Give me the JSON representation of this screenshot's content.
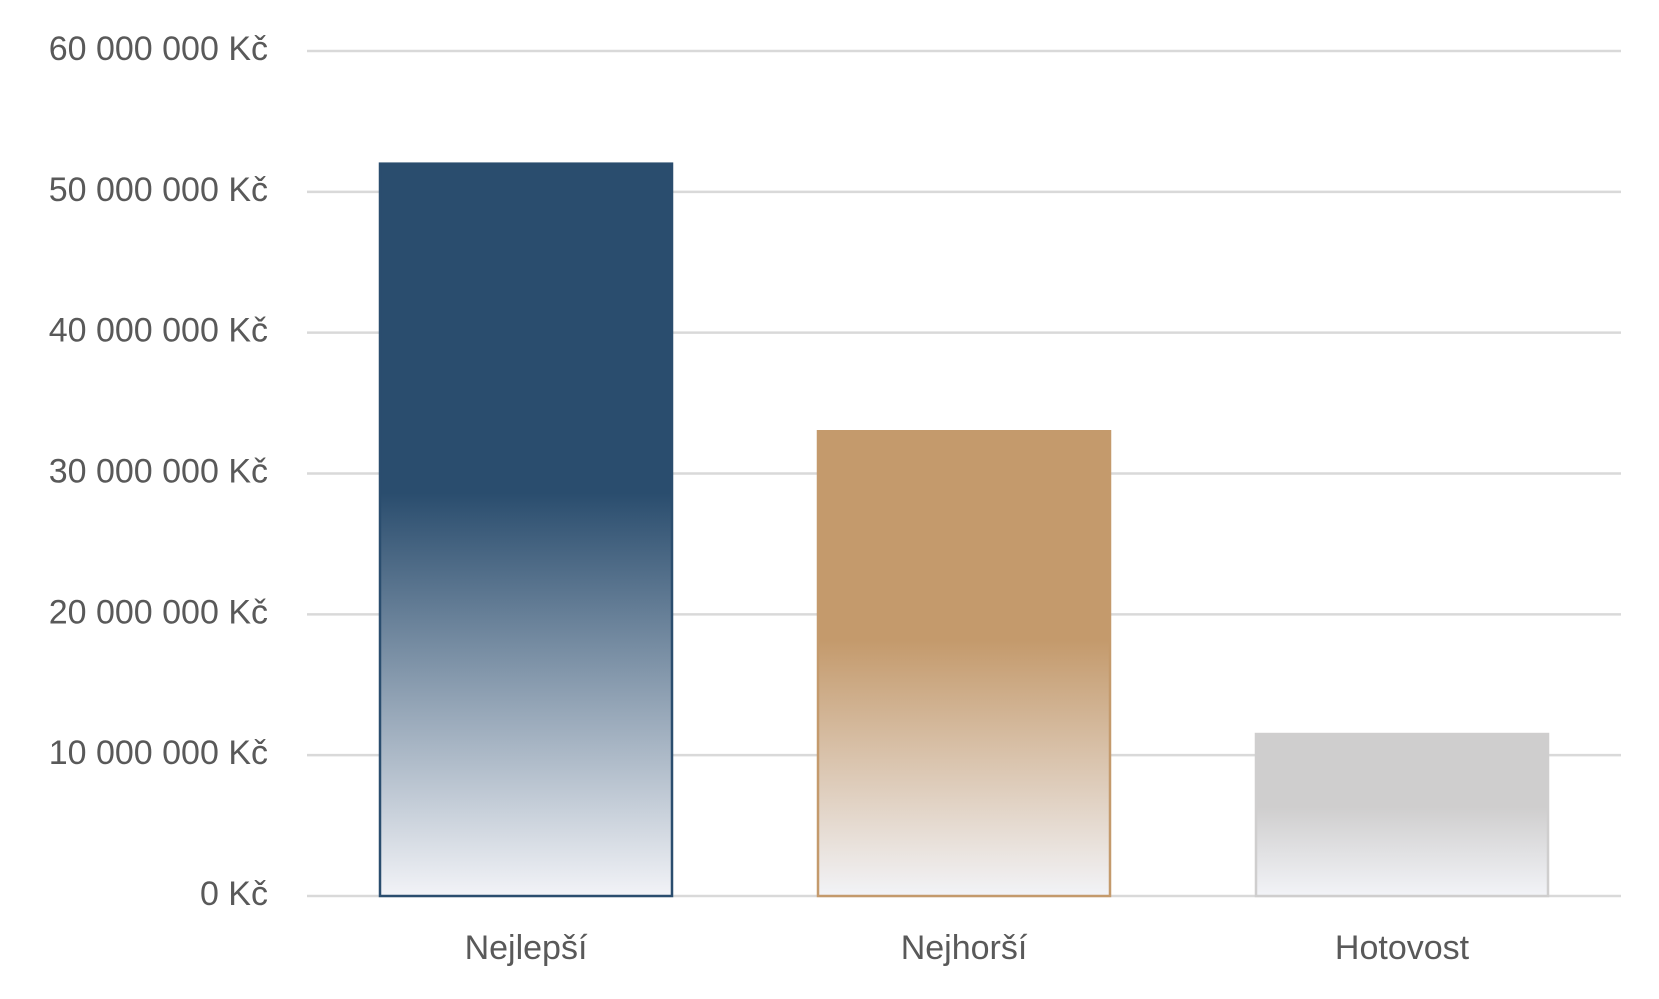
{
  "chart_data": {
    "type": "bar",
    "categories": [
      "Nejlepší",
      "Nejhorší",
      "Hotovost"
    ],
    "values": [
      52000000,
      33000000,
      11500000
    ],
    "colors": [
      "#2a4d6e",
      "#c49a6c",
      "#cfcece"
    ],
    "ylim": [
      0,
      60000000
    ],
    "yticks": [
      {
        "value": 0,
        "label": "0 Kč"
      },
      {
        "value": 10000000,
        "label": "10 000 000 Kč"
      },
      {
        "value": 20000000,
        "label": "20 000 000 Kč"
      },
      {
        "value": 30000000,
        "label": "30 000 000 Kč"
      },
      {
        "value": 40000000,
        "label": "40 000 000 Kč"
      },
      {
        "value": 50000000,
        "label": "50 000 000 Kč"
      },
      {
        "value": 60000000,
        "label": "60 000 000 Kč"
      }
    ],
    "grid": true
  }
}
